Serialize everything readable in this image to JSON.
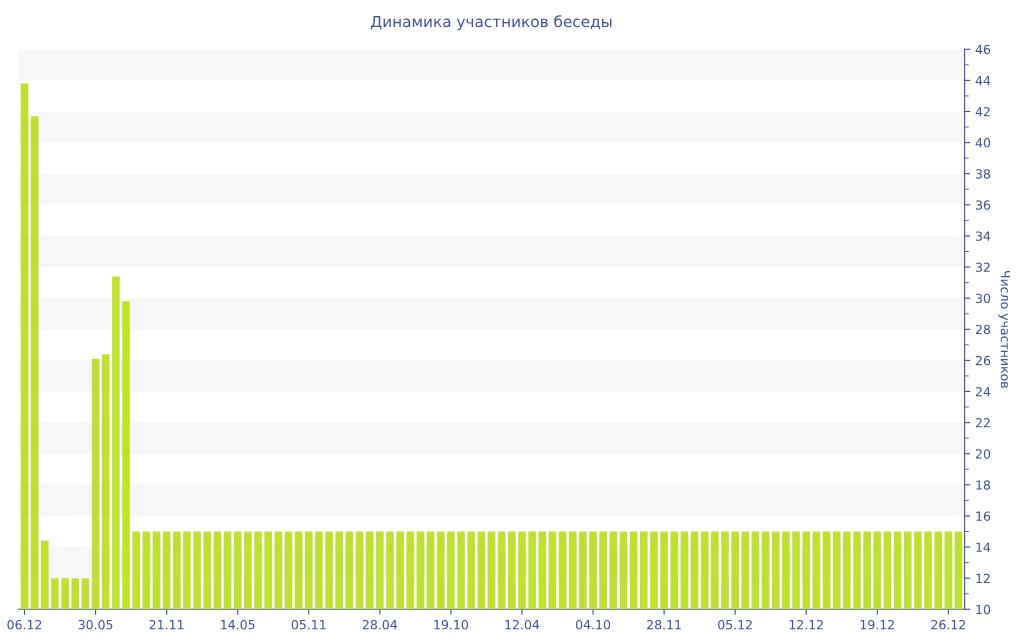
{
  "chart_data": {
    "type": "bar",
    "title": "Динамика участников беседы",
    "ylabel": "Число участников",
    "categories": [
      "06.12",
      null,
      null,
      null,
      null,
      null,
      null,
      "30.05",
      null,
      null,
      null,
      null,
      null,
      null,
      "21.11",
      null,
      null,
      null,
      null,
      null,
      null,
      "14.05",
      null,
      null,
      null,
      null,
      null,
      null,
      "05.11",
      null,
      null,
      null,
      null,
      null,
      null,
      "28.04",
      null,
      null,
      null,
      null,
      null,
      null,
      "19.10",
      null,
      null,
      null,
      null,
      null,
      null,
      "12.04",
      null,
      null,
      null,
      null,
      null,
      null,
      "04.10",
      null,
      null,
      null,
      null,
      null,
      null,
      "28.11",
      null,
      null,
      null,
      null,
      null,
      null,
      "05.12",
      null,
      null,
      null,
      null,
      null,
      null,
      "12.12",
      null,
      null,
      null,
      null,
      null,
      null,
      "19.12",
      null,
      null,
      null,
      null,
      null,
      null,
      "26.12",
      null
    ],
    "values": [
      43.8,
      41.7,
      14.4,
      12,
      12,
      12,
      12,
      26.1,
      26.4,
      31.4,
      29.8,
      15,
      15,
      15,
      15,
      15,
      15,
      15,
      15,
      15,
      15,
      15,
      15,
      15,
      15,
      15,
      15,
      15,
      15,
      15,
      15,
      15,
      15,
      15,
      15,
      15,
      15,
      15,
      15,
      15,
      15,
      15,
      15,
      15,
      15,
      15,
      15,
      15,
      15,
      15,
      15,
      15,
      15,
      15,
      15,
      15,
      15,
      15,
      15,
      15,
      15,
      15,
      15,
      15,
      15,
      15,
      15,
      15,
      15,
      15,
      15,
      15,
      15,
      15,
      15,
      15,
      15,
      15,
      15,
      15,
      15,
      15,
      15,
      15,
      15,
      15,
      15,
      15,
      15,
      15,
      15,
      15,
      15
    ],
    "color": "#bfe032",
    "ylim": [
      10,
      46
    ],
    "yticks": [
      10,
      12,
      14,
      16,
      18,
      20,
      22,
      24,
      26,
      28,
      30,
      32,
      34,
      36,
      38,
      40,
      42,
      44,
      46
    ]
  }
}
